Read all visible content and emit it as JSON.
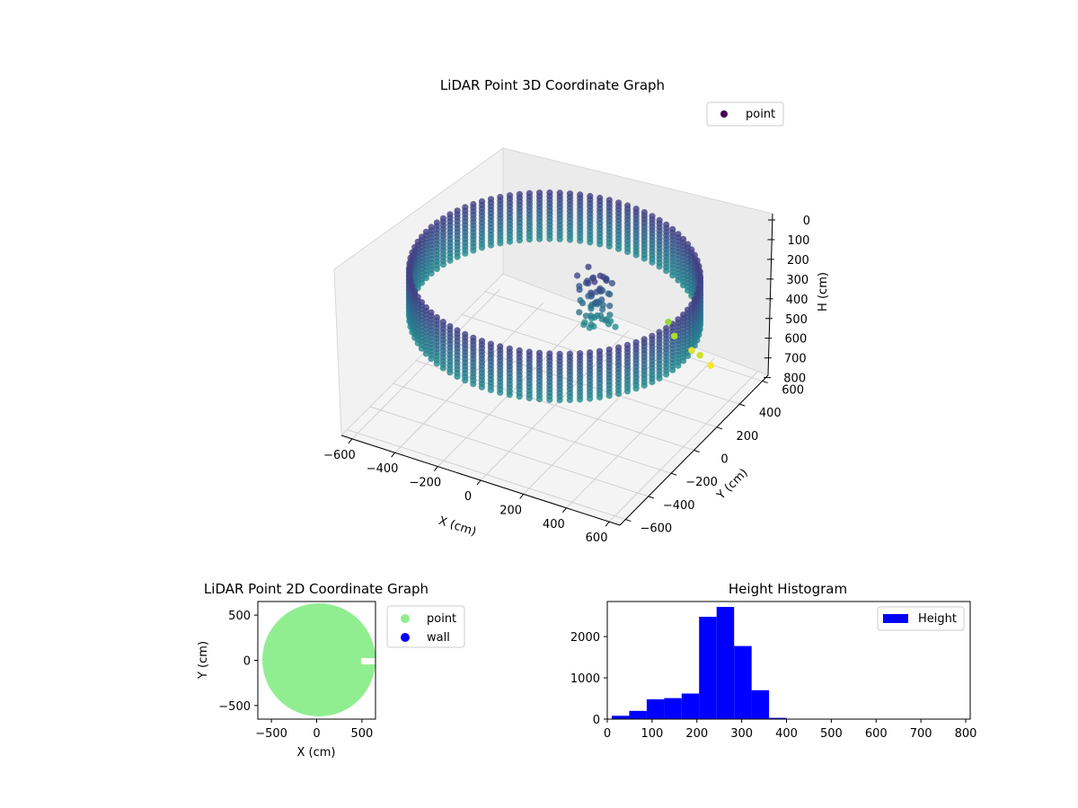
{
  "chart_data": [
    {
      "type": "scatter",
      "title": "LiDAR Point 3D Coordinate Graph",
      "xlabel": "X (cm)",
      "ylabel": "Y (cm)",
      "zlabel": "H (cm)",
      "xlim": [
        -650,
        650
      ],
      "ylim": [
        -650,
        650
      ],
      "zlim": [
        0,
        820
      ],
      "z_inverted": true,
      "xticks": [
        -600,
        -400,
        -200,
        0,
        200,
        400,
        600
      ],
      "yticks": [
        -600,
        -400,
        -200,
        0,
        200,
        400,
        600
      ],
      "zticks": [
        0,
        100,
        200,
        300,
        400,
        500,
        600,
        700,
        800
      ],
      "grid": true,
      "colormap": "viridis",
      "legend": {
        "entries": [
          "point"
        ],
        "placement": "top-right"
      },
      "series": [
        {
          "name": "point",
          "description_of_shape": "ring of points at radius ~600 cm, heights 150-400 cm, with a cluster near the center",
          "ring_radius": 600,
          "ring_z_range": [
            150,
            400
          ],
          "center_cluster_z_range": [
            150,
            420
          ],
          "outliers": [
            {
              "x": 320,
              "y": 600,
              "z": 780
            },
            {
              "x": 250,
              "y": 580,
              "z": 720
            },
            {
              "x": 380,
              "y": 560,
              "z": 760
            },
            {
              "x": 200,
              "y": 620,
              "z": 690
            },
            {
              "x": 420,
              "y": 580,
              "z": 810
            }
          ]
        }
      ]
    },
    {
      "type": "scatter",
      "title": "LiDAR Point 2D Coordinate Graph",
      "xlabel": "X (cm)",
      "ylabel": "Y (cm)",
      "xlim": [
        -650,
        650
      ],
      "ylim": [
        -650,
        650
      ],
      "xticks": [
        -500,
        0,
        500
      ],
      "yticks": [
        -500,
        0,
        500
      ],
      "legend": {
        "entries": [
          "point",
          "wall"
        ],
        "placement": "outside-right"
      },
      "series": [
        {
          "name": "point",
          "color": "#90ee90",
          "shape": "disk of radius ~600 cm with notch at x≈450..650, y≈-50..20"
        },
        {
          "name": "wall",
          "color": "#0000ff",
          "points": []
        }
      ]
    },
    {
      "type": "bar",
      "title": "Height Histogram",
      "xlabel": "",
      "ylabel": "",
      "xlim": [
        0,
        810
      ],
      "ylim": [
        0,
        2850
      ],
      "xticks": [
        0,
        100,
        200,
        300,
        400,
        500,
        600,
        700,
        800
      ],
      "yticks": [
        0,
        1000,
        2000
      ],
      "legend": {
        "entries": [
          "Height"
        ],
        "placement": "top-right"
      },
      "color": "#0000ff",
      "bin_edges": [
        10,
        49,
        88,
        127,
        166,
        205,
        244,
        283,
        322,
        361,
        400,
        439,
        478,
        517,
        556,
        595,
        634,
        673,
        712,
        751,
        790
      ],
      "series": [
        {
          "name": "Height",
          "values": [
            80,
            200,
            480,
            510,
            620,
            2480,
            2720,
            1770,
            700,
            30,
            5,
            0,
            0,
            0,
            0,
            0,
            0,
            0,
            0,
            10
          ]
        }
      ]
    }
  ]
}
